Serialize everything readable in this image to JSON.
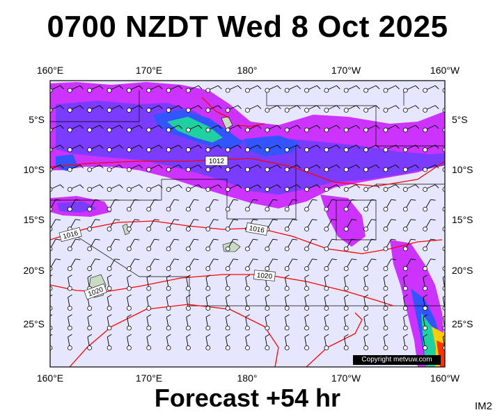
{
  "header": {
    "title": "0700 NZDT Wed 8 Oct 2025"
  },
  "footer": {
    "forecast_label": "Forecast +54 hr",
    "image_id": "IM2"
  },
  "watermark": {
    "copyright": "Copyright metvuw.com"
  },
  "map": {
    "lon_labels": [
      "160°E",
      "170°E",
      "180°",
      "170°W",
      "160°W"
    ],
    "lat_labels": [
      "5°S",
      "10°S",
      "15°S",
      "20°S",
      "25°S"
    ],
    "isobar_labels": [
      "1012",
      "1016",
      "1016",
      "1020",
      "1020"
    ],
    "colors": {
      "background": "#e6e6ff",
      "rain_light": "#cc33ff",
      "rain_medium": "#7a3cff",
      "rain_heavy": "#3355ff",
      "rain_intense": "#20d0a0",
      "rain_extreme": "#ffcc00",
      "isobar": "#ff0000",
      "land": "#c9dcc3"
    }
  }
}
